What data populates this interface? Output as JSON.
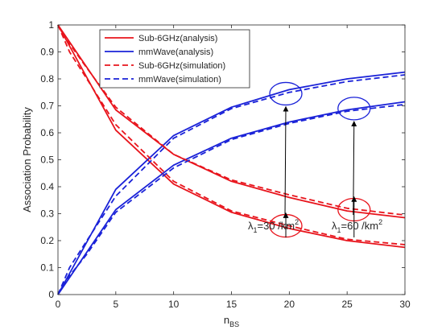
{
  "chart_data": {
    "type": "line",
    "xlabel": "n",
    "xlabel_sub": "BS",
    "ylabel": "Association Probability",
    "xlim": [
      0,
      30
    ],
    "ylim": [
      0,
      1
    ],
    "xticks": [
      0,
      5,
      10,
      15,
      20,
      25,
      30
    ],
    "yticks": [
      0,
      0.1,
      0.2,
      0.3,
      0.4,
      0.5,
      0.6,
      0.7,
      0.8,
      0.9,
      1
    ],
    "grid": false,
    "legend_position": "top-left",
    "colors": {
      "sub6": "#e8141c",
      "mmwave": "#1a22d8"
    },
    "series": [
      {
        "name": "Sub-6GHz(analysis)",
        "color": "#e8141c",
        "dash": false,
        "x": [
          0,
          5,
          10,
          15,
          20,
          25,
          30
        ],
        "y": [
          1.0,
          0.61,
          0.41,
          0.305,
          0.245,
          0.2,
          0.175
        ]
      },
      {
        "name": "",
        "color": "#e8141c",
        "dash": false,
        "x": [
          0,
          5,
          10,
          15,
          20,
          25,
          30
        ],
        "y": [
          1.0,
          0.685,
          0.52,
          0.42,
          0.36,
          0.31,
          0.285
        ]
      },
      {
        "name": "mmWave(analysis)",
        "color": "#1a22d8",
        "dash": false,
        "x": [
          0,
          5,
          10,
          15,
          20,
          25,
          30
        ],
        "y": [
          0.0,
          0.39,
          0.59,
          0.695,
          0.76,
          0.8,
          0.825
        ]
      },
      {
        "name": "",
        "color": "#1a22d8",
        "dash": false,
        "x": [
          0,
          5,
          10,
          15,
          20,
          25,
          30
        ],
        "y": [
          0.0,
          0.315,
          0.48,
          0.58,
          0.64,
          0.685,
          0.715
        ]
      },
      {
        "name": "Sub-6GHz(simulation)",
        "color": "#e8141c",
        "dash": true,
        "x": [
          0,
          1,
          2.5,
          5,
          10,
          15,
          20,
          25,
          30
        ],
        "y": [
          1.0,
          0.9,
          0.8,
          0.63,
          0.42,
          0.31,
          0.255,
          0.205,
          0.185
        ]
      },
      {
        "name": "",
        "color": "#e8141c",
        "dash": true,
        "x": [
          0,
          1,
          2.5,
          5,
          10,
          15,
          20,
          25,
          30
        ],
        "y": [
          1.0,
          0.93,
          0.84,
          0.695,
          0.52,
          0.425,
          0.37,
          0.32,
          0.295
        ]
      },
      {
        "name": "mmWave(simulation)",
        "color": "#1a22d8",
        "dash": true,
        "x": [
          0,
          1,
          2.5,
          5,
          10,
          15,
          20,
          25,
          30
        ],
        "y": [
          0.0,
          0.1,
          0.2,
          0.365,
          0.58,
          0.69,
          0.75,
          0.79,
          0.815
        ]
      },
      {
        "name": "",
        "color": "#1a22d8",
        "dash": true,
        "x": [
          0,
          1,
          2.5,
          5,
          10,
          15,
          20,
          25,
          30
        ],
        "y": [
          0.0,
          0.07,
          0.15,
          0.305,
          0.47,
          0.575,
          0.635,
          0.68,
          0.705
        ]
      }
    ],
    "annotations": [
      {
        "label": "λ",
        "sub": "1",
        "text": "=30 /km",
        "sup": "2",
        "ellipses": [
          {
            "x": 19.7,
            "y": 0.745,
            "color": "#1a22d8"
          },
          {
            "x": 19.7,
            "y": 0.255,
            "color": "#e8141c"
          }
        ]
      },
      {
        "label": "λ",
        "sub": "1",
        "text": "=60 /km",
        "sup": "2",
        "ellipses": [
          {
            "x": 25.6,
            "y": 0.69,
            "color": "#1a22d8"
          },
          {
            "x": 25.6,
            "y": 0.315,
            "color": "#e8141c"
          }
        ]
      }
    ]
  }
}
